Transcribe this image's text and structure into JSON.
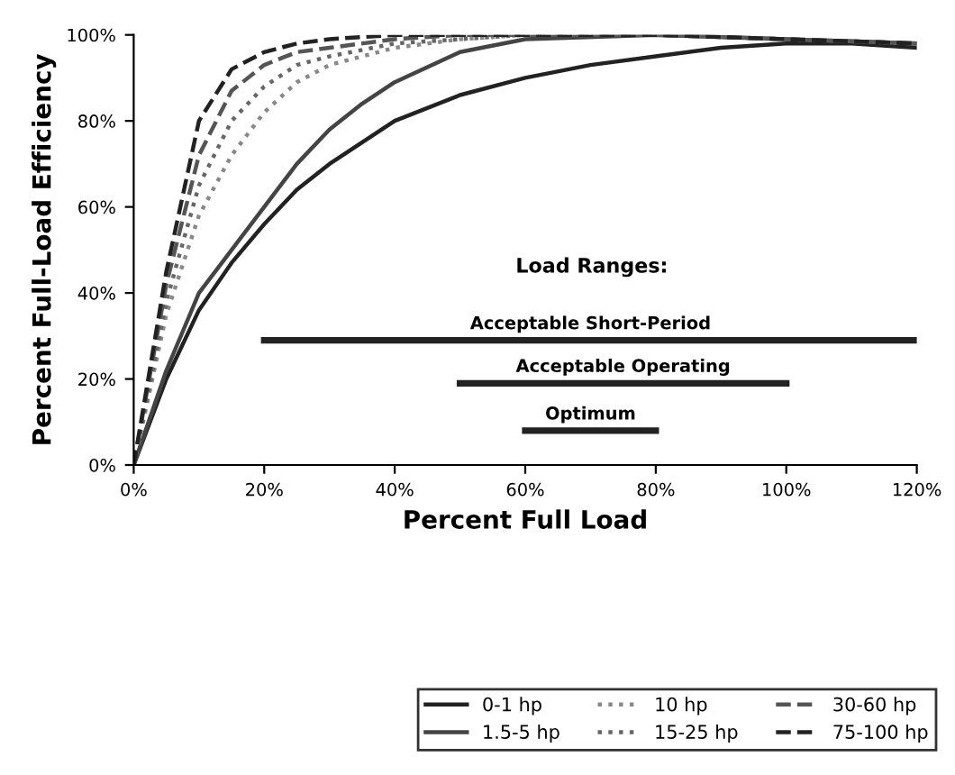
{
  "chart_data": {
    "type": "line",
    "xlabel": "Percent Full Load",
    "ylabel": "Percent Full-Load Efficiency",
    "xlim": [
      0,
      120
    ],
    "ylim": [
      0,
      100
    ],
    "xticks": [
      {
        "value": 0,
        "label": "0%"
      },
      {
        "value": 20,
        "label": "20%"
      },
      {
        "value": 40,
        "label": "40%"
      },
      {
        "value": 60,
        "label": "60%"
      },
      {
        "value": 80,
        "label": "80%"
      },
      {
        "value": 100,
        "label": "100%"
      },
      {
        "value": 120,
        "label": "120%"
      }
    ],
    "yticks": [
      {
        "value": 0,
        "label": "0%"
      },
      {
        "value": 20,
        "label": "20%"
      },
      {
        "value": 40,
        "label": "40%"
      },
      {
        "value": 60,
        "label": "60%"
      },
      {
        "value": 80,
        "label": "80%"
      },
      {
        "value": 100,
        "label": "100%"
      }
    ],
    "legend": "bottom right",
    "grid": false,
    "marker": "none",
    "annotations": [
      "Load Ranges:"
    ],
    "series": [
      {
        "name": "0-1 hp",
        "color": "#222222",
        "line_style": "solid",
        "x": [
          0,
          5,
          10,
          15,
          20,
          25,
          30,
          40,
          50,
          60,
          70,
          80,
          90,
          100,
          110,
          120
        ],
        "values": [
          0,
          20,
          36,
          47,
          56,
          64,
          70,
          80,
          86,
          90,
          93,
          95,
          97,
          98,
          98,
          97
        ]
      },
      {
        "name": "1.5-5 hp",
        "color": "#444444",
        "line_style": "solid",
        "x": [
          0,
          5,
          10,
          15,
          20,
          25,
          30,
          35,
          40,
          50,
          60,
          80,
          100,
          120
        ],
        "values": [
          0,
          22,
          40,
          50,
          60,
          70,
          78,
          84,
          89,
          96,
          99,
          100,
          99,
          98
        ]
      },
      {
        "name": "10 hp",
        "color": "#888888",
        "line_style": "dotted",
        "x": [
          0,
          5,
          10,
          15,
          20,
          25,
          30,
          40,
          50,
          60,
          80,
          100,
          120
        ],
        "values": [
          0,
          35,
          58,
          72,
          82,
          89,
          93,
          97,
          99,
          100,
          100,
          99,
          98
        ]
      },
      {
        "name": "15-25 hp",
        "color": "#666666",
        "line_style": "dotted",
        "x": [
          0,
          5,
          10,
          15,
          20,
          25,
          30,
          40,
          50,
          60,
          80,
          100,
          120
        ],
        "values": [
          0,
          38,
          65,
          80,
          88,
          93,
          95,
          98,
          99,
          100,
          100,
          99,
          98
        ]
      },
      {
        "name": "30-60 hp",
        "color": "#555555",
        "line_style": "dashed",
        "x": [
          0,
          5,
          10,
          15,
          20,
          25,
          30,
          40,
          50,
          60,
          80,
          100,
          120
        ],
        "values": [
          0,
          42,
          72,
          87,
          93,
          96,
          97,
          99,
          100,
          100,
          100,
          99,
          98
        ]
      },
      {
        "name": "75-100 hp",
        "color": "#222222",
        "line_style": "dashed",
        "x": [
          0,
          5,
          10,
          15,
          20,
          25,
          30,
          40,
          50,
          60,
          80,
          100,
          120
        ],
        "values": [
          0,
          45,
          80,
          92,
          96,
          98,
          99,
          100,
          100,
          100,
          100,
          99,
          98
        ]
      },
      {
        "name": "Acceptable Short-Period",
        "color": "#222222",
        "x": [
          20,
          120
        ],
        "values": [
          29,
          29
        ]
      },
      {
        "name": "Acceptable Operating",
        "color": "#222222",
        "x": [
          50,
          100
        ],
        "values": [
          19,
          19
        ]
      },
      {
        "name": "Optimum",
        "color": "#222222",
        "x": [
          60,
          80
        ],
        "values": [
          8,
          8
        ]
      }
    ]
  }
}
